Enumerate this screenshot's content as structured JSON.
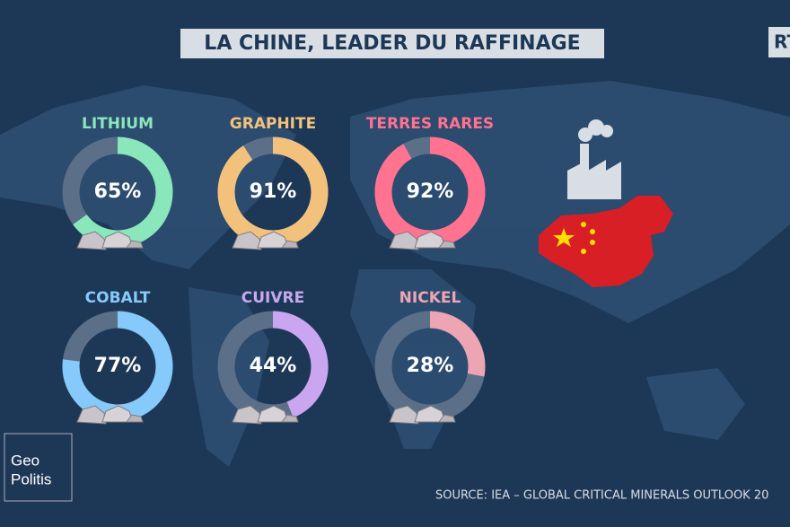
{
  "header": {
    "title": "LA CHINE, LEADER DU RAFFINAGE",
    "logo": "RT"
  },
  "chart_data": [
    {
      "type": "donut",
      "title": "LITHIUM",
      "values": [
        65
      ],
      "value_labels": [
        "65%"
      ],
      "color": "#8ae6bb"
    },
    {
      "type": "donut",
      "title": "GRAPHITE",
      "values": [
        91
      ],
      "value_labels": [
        "91%"
      ],
      "color": "#f2c27c"
    },
    {
      "type": "donut",
      "title": "TERRES RARES",
      "values": [
        92
      ],
      "value_labels": [
        "92%"
      ],
      "color": "#ff7290"
    },
    {
      "type": "donut",
      "title": "COBALT",
      "values": [
        77
      ],
      "value_labels": [
        "77%"
      ],
      "color": "#86c9fb"
    },
    {
      "type": "donut",
      "title": "CUIVRE",
      "values": [
        44
      ],
      "value_labels": [
        "44%"
      ],
      "color": "#c9a6ef"
    },
    {
      "type": "donut",
      "title": "NICKEL",
      "values": [
        28
      ],
      "value_labels": [
        "28%"
      ],
      "color": "#eea5b3"
    }
  ],
  "footer": {
    "source": "SOURCE: IEA – GLOBAL CRITICAL MINERALS OUTLOOK 20",
    "brand": [
      "Geo",
      "Politis"
    ]
  }
}
